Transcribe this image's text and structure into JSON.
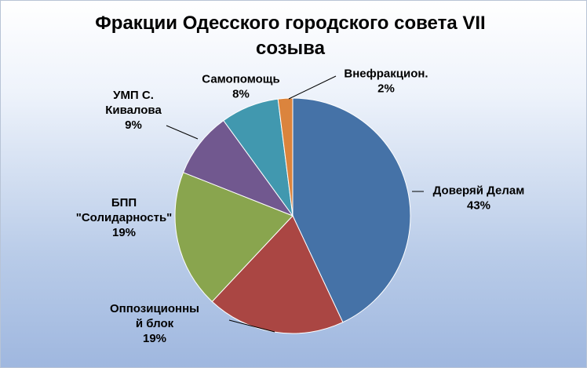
{
  "chart_data": {
    "type": "pie",
    "title_lines": [
      "Фракции Одесского городского совета VII",
      "созыва"
    ],
    "series": [
      {
        "name": "Доверяй Делам",
        "label_lines": [
          "Доверяй Делам",
          "43%"
        ],
        "value": 43,
        "color": "#4572A7"
      },
      {
        "name": "Оппозиционный блок",
        "label_lines": [
          "Оппозиционны",
          "й блок",
          "19%"
        ],
        "value": 19,
        "color": "#AA4643"
      },
      {
        "name": "БПП \"Солидарность\"",
        "label_lines": [
          "БПП",
          "\"Солидарность\"",
          "19%"
        ],
        "value": 19,
        "color": "#89A54E"
      },
      {
        "name": "УМП С. Кивалова",
        "label_lines": [
          "УМП С.",
          "Кивалова",
          "9%"
        ],
        "value": 9,
        "color": "#71588F"
      },
      {
        "name": "Самопомощь",
        "label_lines": [
          "Самопомощь",
          "8%"
        ],
        "value": 8,
        "color": "#4198AF"
      },
      {
        "name": "Внефракцион.",
        "label_lines": [
          "Внефракцион.",
          "2%"
        ],
        "value": 2,
        "color": "#DB843D"
      }
    ]
  }
}
